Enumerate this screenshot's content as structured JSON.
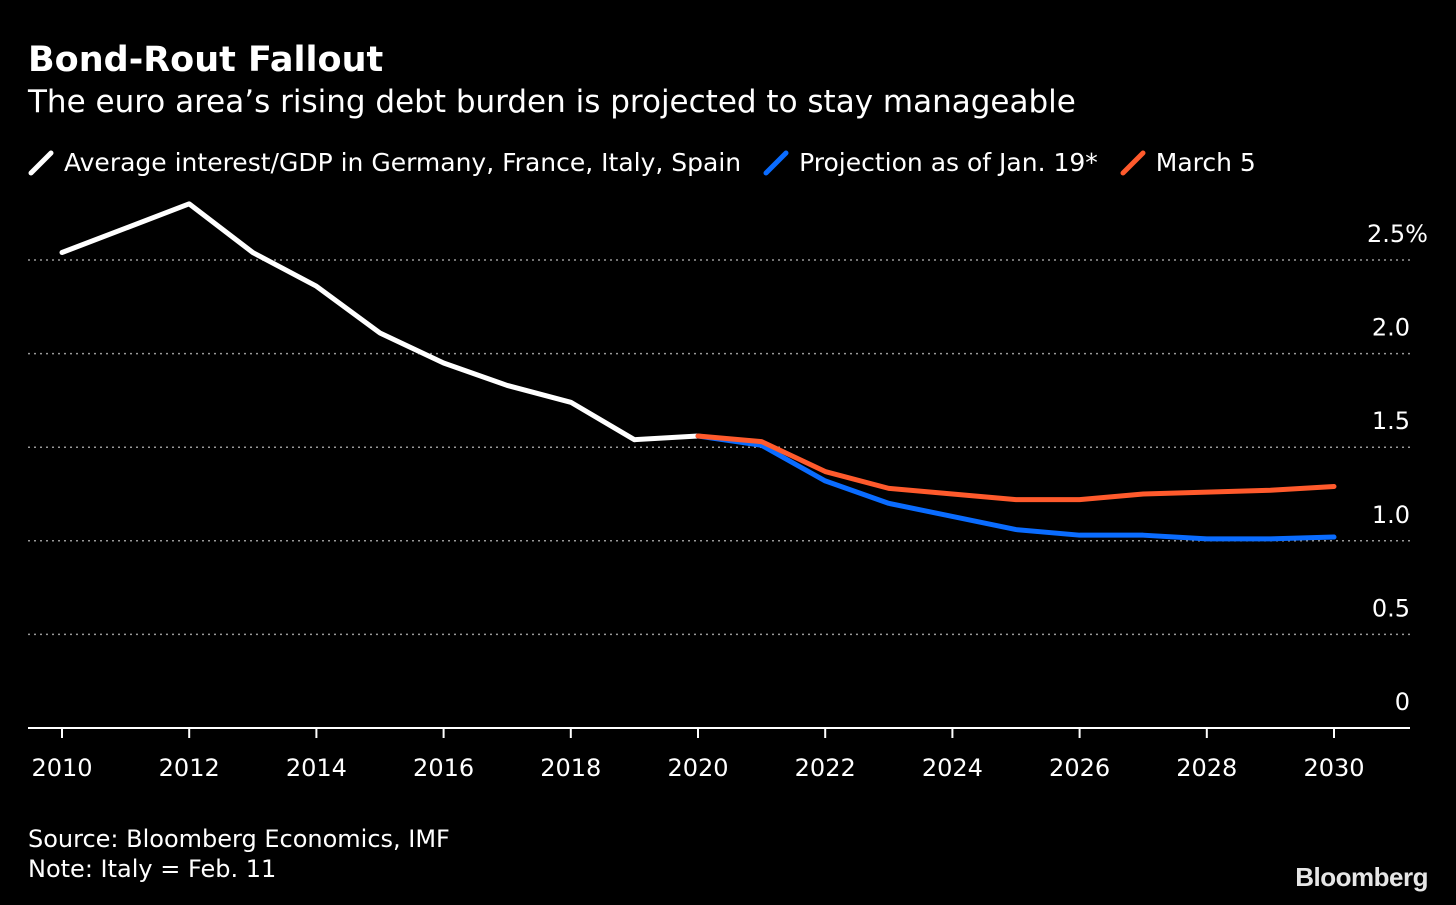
{
  "chart_data": {
    "type": "line",
    "title": "Bond-Rout Fallout",
    "subtitle": "The euro area’s rising debt burden is projected to stay manageable",
    "xlabel": "",
    "ylabel": "",
    "xlim": [
      2010,
      2030
    ],
    "ylim": [
      0,
      2.5
    ],
    "grid": true,
    "legend_placement": "top",
    "x_ticks": [
      "2010",
      "2012",
      "2014",
      "2016",
      "2018",
      "2020",
      "2022",
      "2024",
      "2026",
      "2028",
      "2030"
    ],
    "y_ticks": [
      {
        "value": 0,
        "label": "0"
      },
      {
        "value": 0.5,
        "label": "0.5"
      },
      {
        "value": 1.0,
        "label": "1.0"
      },
      {
        "value": 1.5,
        "label": "1.5"
      },
      {
        "value": 2.0,
        "label": "2.0"
      },
      {
        "value": 2.5,
        "label": "2.5%"
      }
    ],
    "series": [
      {
        "name": "Average interest/GDP in Germany, France, Italy, Spain",
        "color": "#ffffff",
        "x": [
          2010,
          2011,
          2012,
          2013,
          2014,
          2015,
          2016,
          2017,
          2018,
          2019,
          2020
        ],
        "values": [
          2.54,
          2.67,
          2.8,
          2.54,
          2.36,
          2.11,
          1.95,
          1.83,
          1.74,
          1.54,
          1.56
        ]
      },
      {
        "name": "Projection as of Jan. 19*",
        "color": "#0a6cff",
        "x": [
          2020,
          2021,
          2022,
          2023,
          2024,
          2025,
          2026,
          2027,
          2028,
          2029,
          2030
        ],
        "values": [
          1.56,
          1.51,
          1.32,
          1.2,
          1.13,
          1.06,
          1.03,
          1.03,
          1.01,
          1.01,
          1.02
        ]
      },
      {
        "name": "March 5",
        "color": "#ff5a2c",
        "x": [
          2020,
          2021,
          2022,
          2023,
          2024,
          2025,
          2026,
          2027,
          2028,
          2029,
          2030
        ],
        "values": [
          1.56,
          1.53,
          1.37,
          1.28,
          1.25,
          1.22,
          1.22,
          1.25,
          1.26,
          1.27,
          1.29
        ]
      }
    ]
  },
  "footer": {
    "source": "Source: Bloomberg Economics, IMF",
    "note": "Note: Italy = Feb. 11",
    "logo": "Bloomberg"
  }
}
